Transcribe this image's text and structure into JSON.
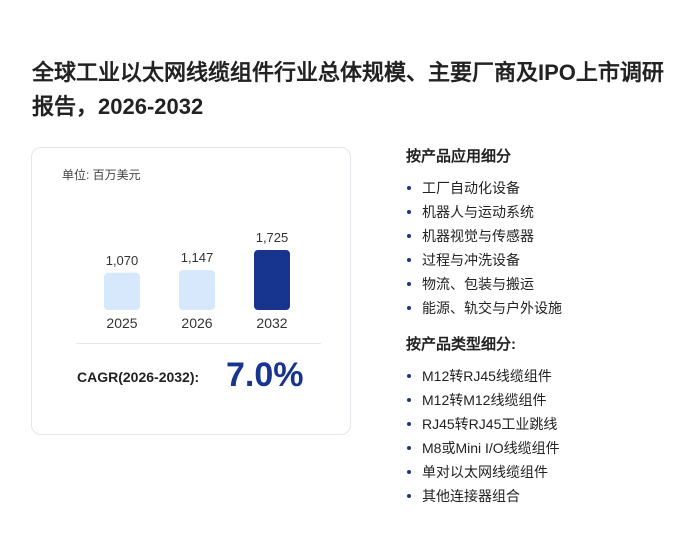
{
  "title": "全球工业以太网线缆组件行业总体规模、主要厂商及IPO上市调研报告，2026-2032",
  "chart_data": {
    "type": "bar",
    "unit_label": "单位: 百万美元",
    "categories": [
      "2025",
      "2026",
      "2032"
    ],
    "values": [
      1070,
      1147,
      1725
    ],
    "value_labels": [
      "1,070",
      "1,147",
      "1,725"
    ],
    "colors": [
      "#d6e8fb",
      "#d6e8fb",
      "#17348e"
    ],
    "cagr_label": "CAGR(2026-2032):",
    "cagr_value": "7.0%"
  },
  "segments": [
    {
      "title": "按产品应用细分",
      "items": [
        "工厂自动化设备",
        "机器人与运动系统",
        "机器视觉与传感器",
        "过程与冲洗设备",
        "物流、包装与搬运",
        "能源、轨交与户外设施"
      ]
    },
    {
      "title": "按产品类型细分:",
      "items": [
        "M12转RJ45线缆组件",
        "M12转M12线缆组件",
        "RJ45转RJ45工业跳线",
        "M8或Mini I/O线缆组件",
        "单对以太网线缆组件",
        "其他连接器组合"
      ]
    }
  ]
}
